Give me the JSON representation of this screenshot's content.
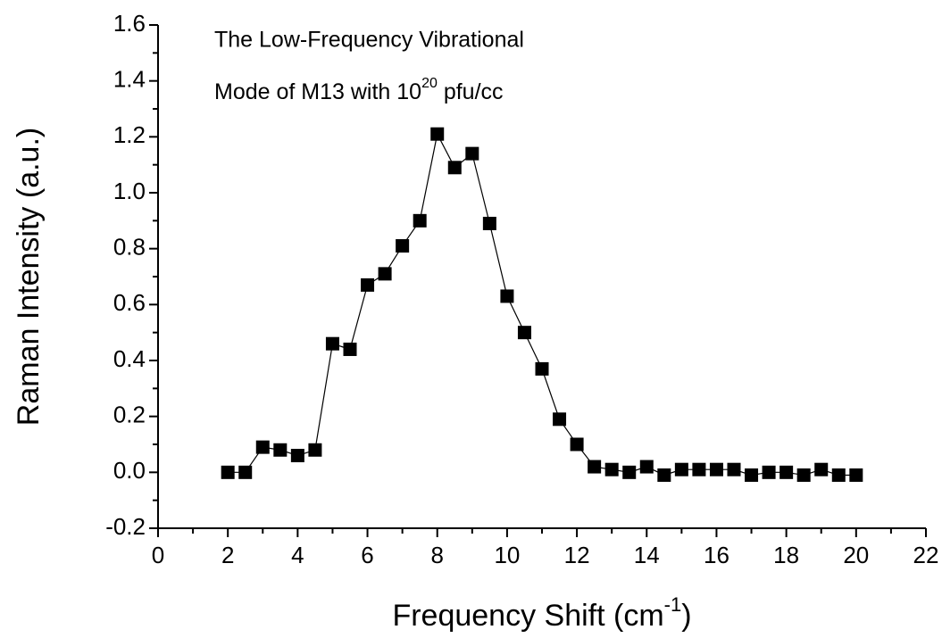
{
  "chart_data": {
    "type": "line",
    "annotation": {
      "line1": "The Low-Frequency Vibrational",
      "line2": {
        "text": "Mode of M13 with 10",
        "sup": "20",
        "after": " pfu/cc"
      }
    },
    "x_label": {
      "text": "Frequency Shift (cm",
      "sup": "-1",
      "after": ")"
    },
    "y_label": "Raman Intensity (a.u.)",
    "x": [
      2,
      2.5,
      3,
      3.5,
      4,
      4.5,
      5,
      5.5,
      6,
      6.5,
      7,
      7.5,
      8,
      8.5,
      9,
      9.5,
      10,
      10.5,
      11,
      11.5,
      12,
      12.5,
      13,
      13.5,
      14,
      14.5,
      15,
      15.5,
      16,
      16.5,
      17,
      17.5,
      18,
      18.5,
      19,
      19.5,
      20
    ],
    "series": [
      {
        "color": "#000000",
        "values": [
          0.0,
          0.0,
          0.09,
          0.08,
          0.06,
          0.08,
          0.46,
          0.44,
          0.67,
          0.71,
          0.81,
          0.9,
          1.21,
          1.09,
          1.14,
          0.89,
          0.63,
          0.5,
          0.37,
          0.19,
          0.1,
          0.02,
          0.01,
          0.0,
          0.02,
          -0.01,
          0.01,
          0.01,
          0.01,
          0.01,
          -0.01,
          0.0,
          0.0,
          -0.01,
          0.01,
          -0.01,
          -0.01
        ]
      }
    ],
    "xlim": [
      0,
      22
    ],
    "xticks": [
      0,
      2,
      4,
      6,
      8,
      10,
      12,
      14,
      16,
      18,
      20,
      22
    ],
    "ylim": [
      -0.2,
      1.6
    ],
    "yticks": [
      -0.2,
      {
        "value": 0,
        "label": "0.0"
      },
      0.2,
      0.4,
      0.6,
      0.8,
      {
        "value": 1,
        "label": "1.0"
      },
      1.2,
      1.4,
      1.6
    ],
    "grid": false
  }
}
